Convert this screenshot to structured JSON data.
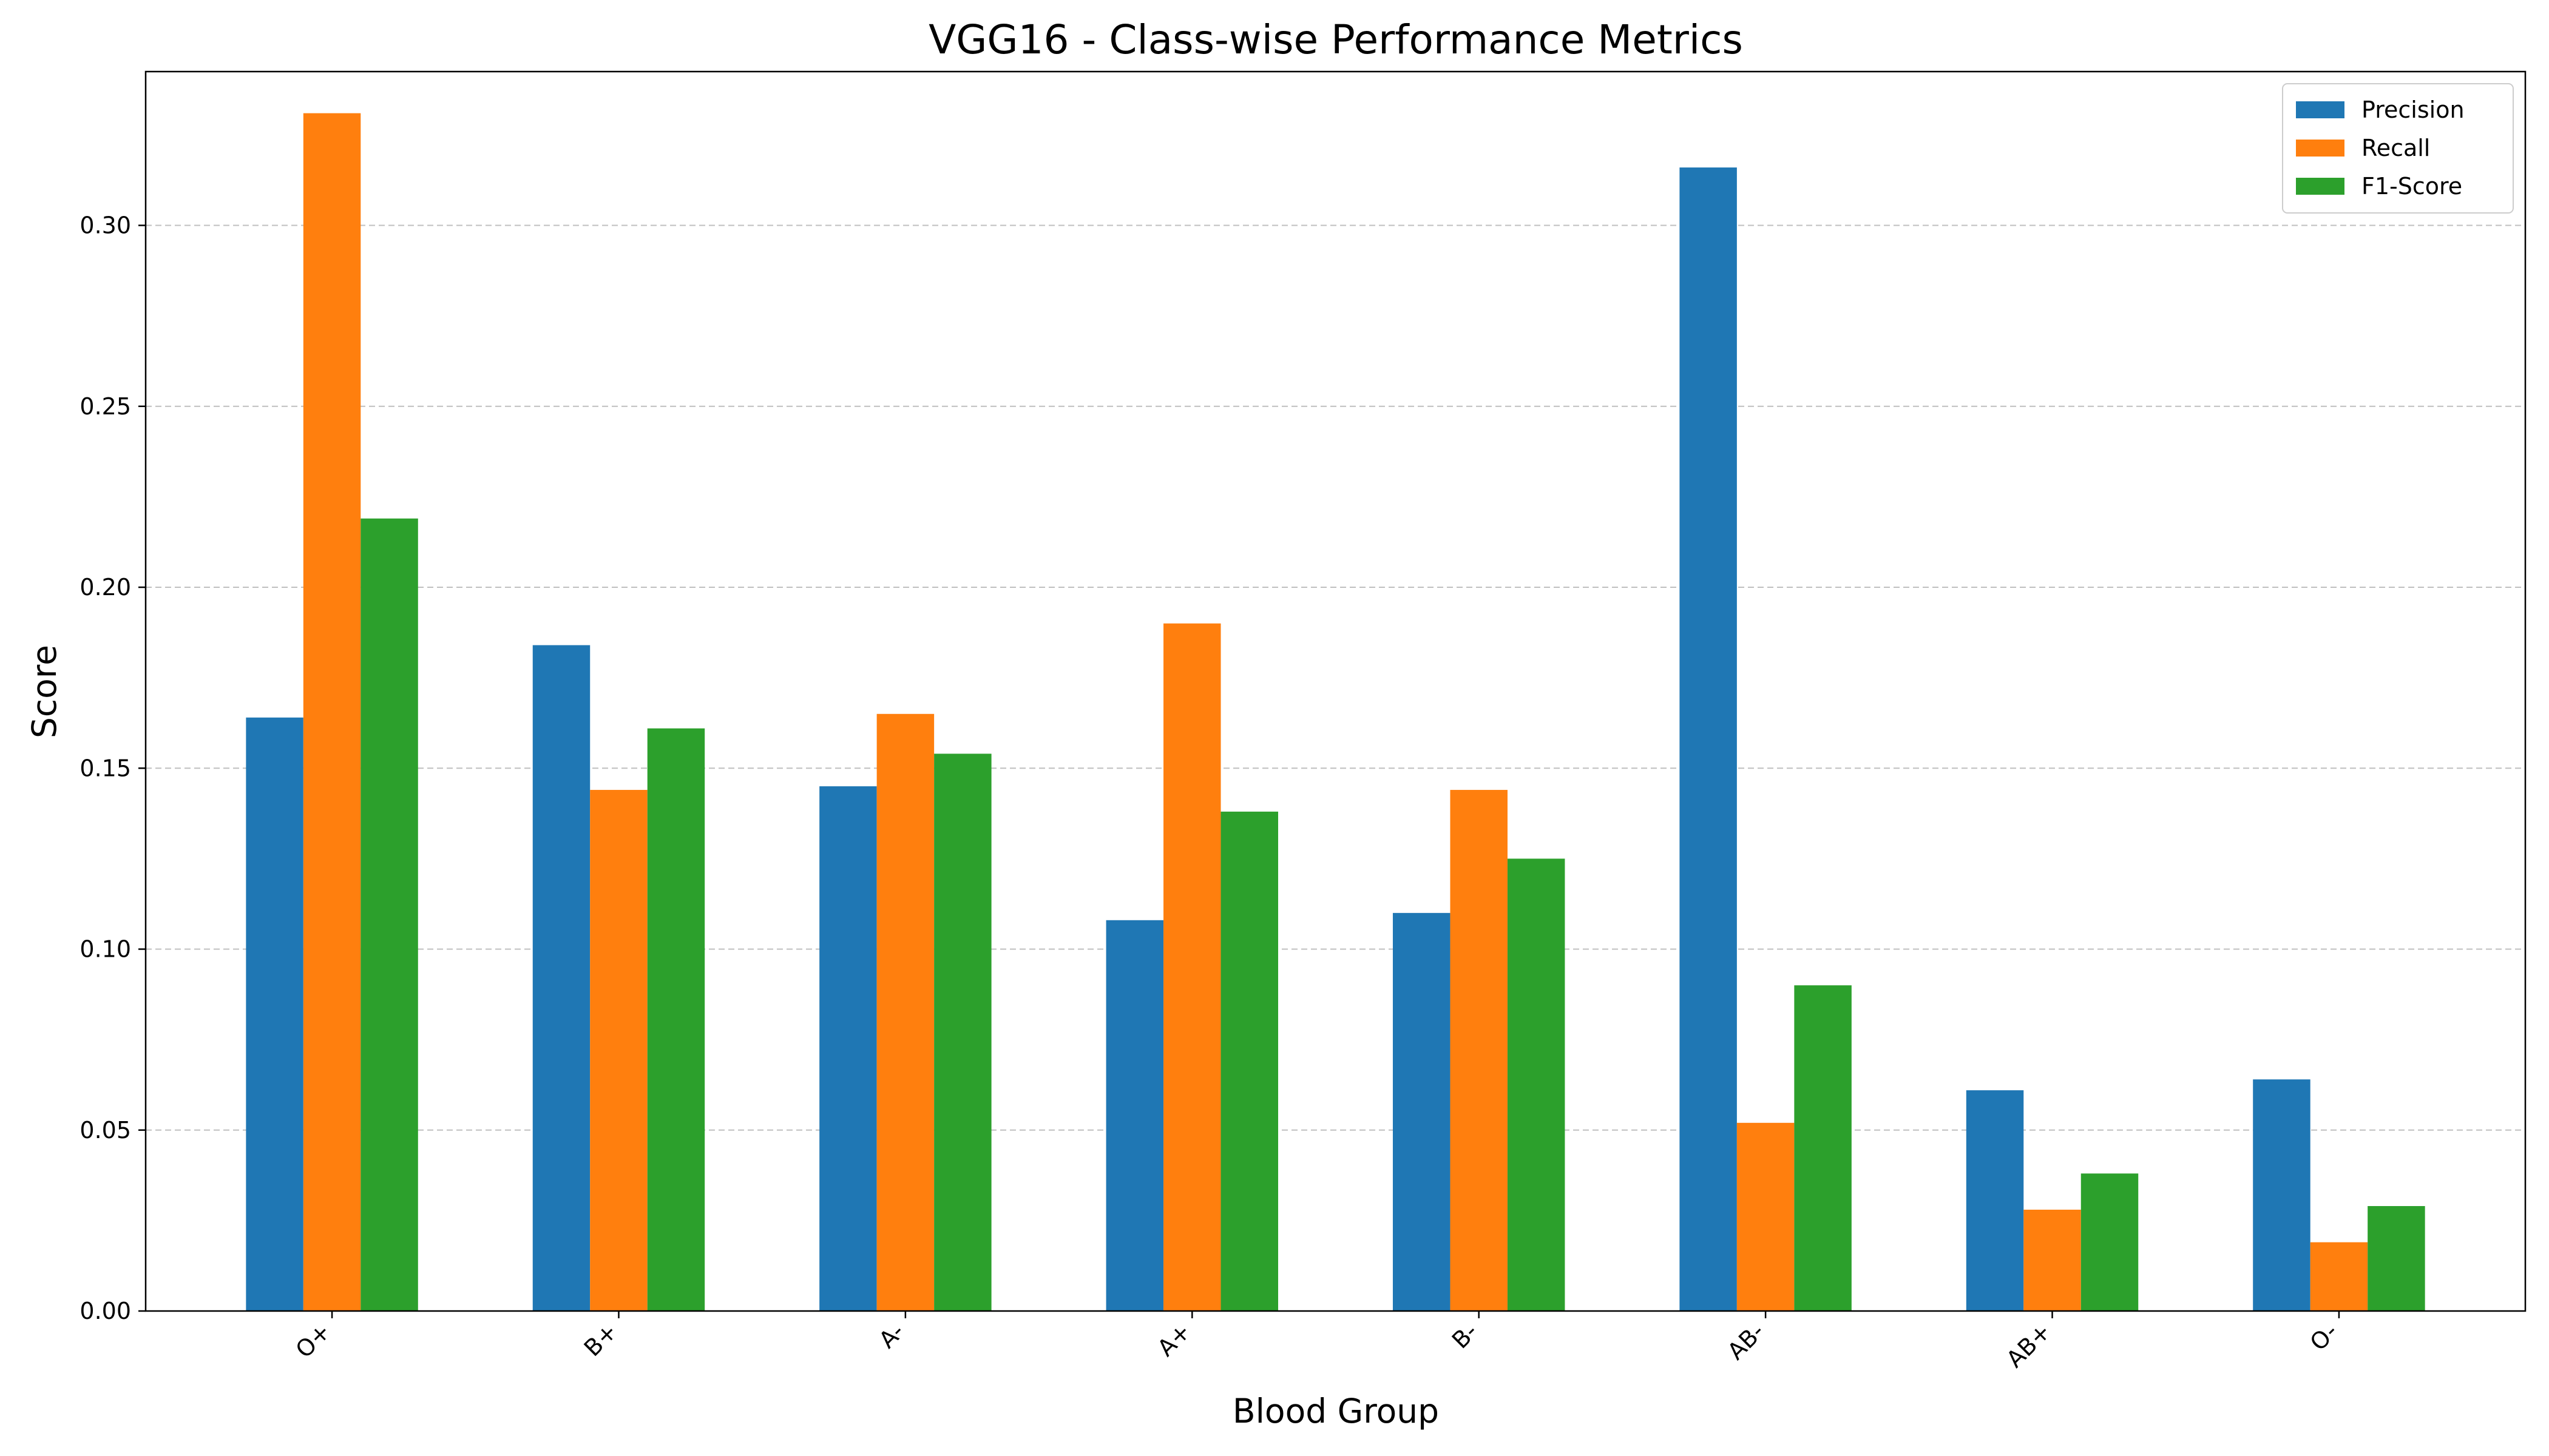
{
  "chart_data": {
    "type": "bar",
    "title": "VGG16 - Class-wise Performance Metrics",
    "xlabel": "Blood Group",
    "ylabel": "Score",
    "categories": [
      "O+",
      "B+",
      "A-",
      "A+",
      "B-",
      "AB-",
      "AB+",
      "O-"
    ],
    "series": [
      {
        "name": "Precision",
        "color": "#1f77b4",
        "values": [
          0.164,
          0.184,
          0.145,
          0.108,
          0.11,
          0.316,
          0.061,
          0.064
        ]
      },
      {
        "name": "Recall",
        "color": "#ff7f0e",
        "values": [
          0.331,
          0.144,
          0.165,
          0.19,
          0.144,
          0.052,
          0.028,
          0.019
        ]
      },
      {
        "name": "F1-Score",
        "color": "#2ca02c",
        "values": [
          0.219,
          0.161,
          0.154,
          0.138,
          0.125,
          0.09,
          0.038,
          0.029
        ]
      }
    ],
    "ylim": [
      0,
      0.3425
    ],
    "yticks": [
      0.0,
      0.05,
      0.1,
      0.15,
      0.2,
      0.25,
      0.3
    ],
    "ytick_labels": [
      "0.00",
      "0.05",
      "0.10",
      "0.15",
      "0.20",
      "0.25",
      "0.30"
    ],
    "grid": "y-dashed",
    "legend_position": "top-right",
    "xtick_rotation": "45"
  }
}
